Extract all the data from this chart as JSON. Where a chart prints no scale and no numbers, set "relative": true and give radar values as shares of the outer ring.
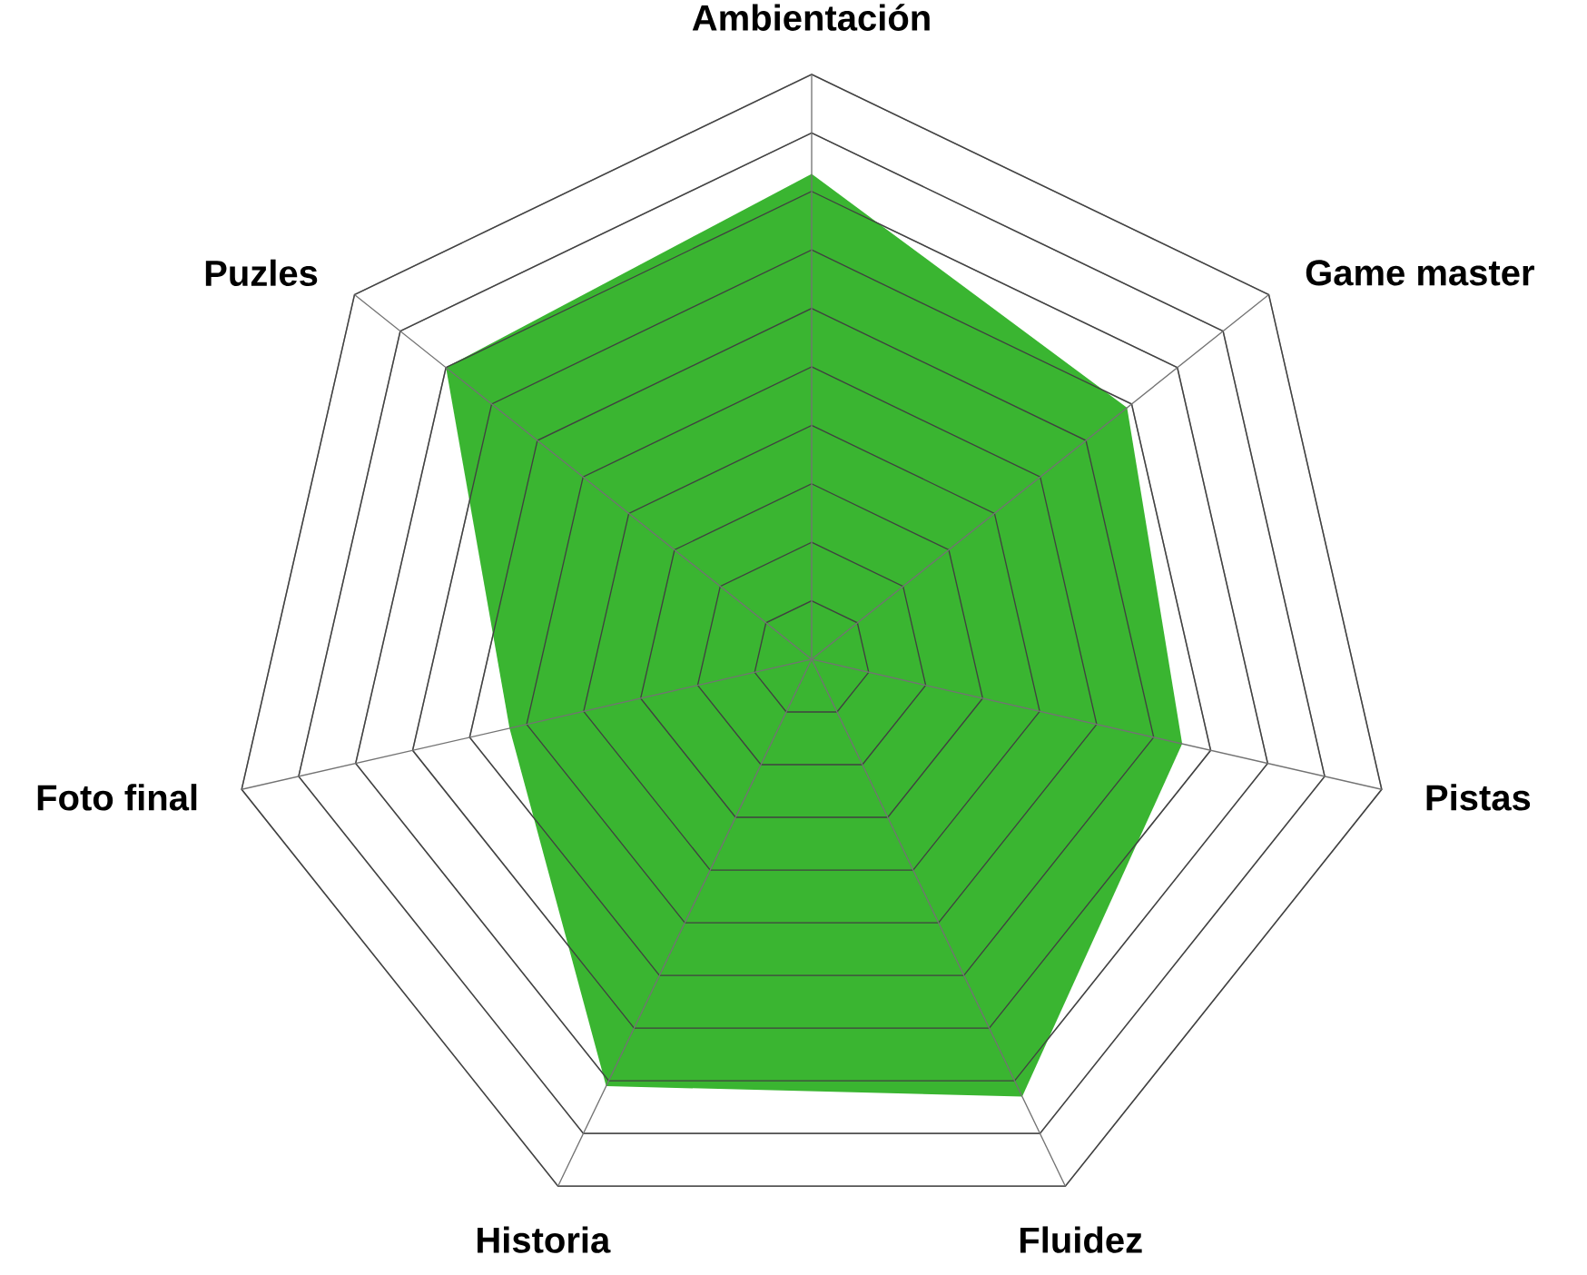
{
  "chart_data": {
    "type": "radar",
    "relative": true,
    "grid": true,
    "categories": [
      "Ambientación",
      "Game master",
      "Pistas",
      "Fluidez",
      "Historia",
      "Foto final",
      "Puzles"
    ],
    "series": [
      {
        "color": "#3ab531",
        "values": [
          0.83,
          0.69,
          0.65,
          0.83,
          0.81,
          0.53,
          0.8
        ]
      }
    ]
  }
}
